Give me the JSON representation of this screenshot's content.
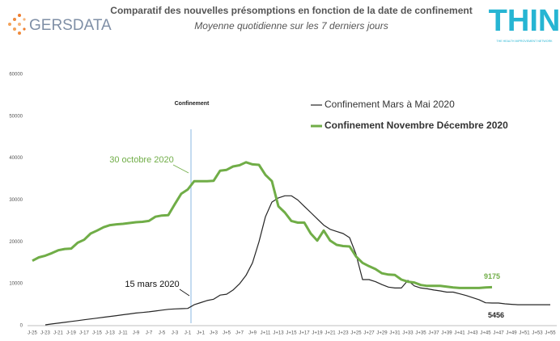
{
  "chart_data": {
    "type": "line",
    "title": "Comparatif des nouvelles présomptions en fonction de la date de confinement",
    "subtitle": "Moyenne quotidienne sur les 7 derniers jours",
    "logos": {
      "left": "GERSDATA",
      "right": "THIN",
      "right_tagline": "THE HEALTH IMPROVEMENT NETWORK"
    },
    "annotations": [
      "Confinement",
      "30 octobre 2020",
      "15 mars 2020"
    ],
    "categories": [
      "J-25",
      null,
      "J-23",
      null,
      "J-21",
      null,
      "J-19",
      null,
      "J-17",
      null,
      "J-15",
      null,
      "J-13",
      null,
      "J-11",
      null,
      "J-9",
      null,
      "J-7",
      null,
      "J-5",
      null,
      "J-3",
      null,
      "J-1",
      null,
      "J+1",
      null,
      "J+3",
      null,
      "J+5",
      null,
      "J+7",
      null,
      "J+9",
      null,
      "J+11",
      null,
      "J+13",
      null,
      "J+15",
      null,
      "J+17",
      null,
      "J+19",
      null,
      "J+21",
      null,
      "J+23",
      null,
      "J+25",
      null,
      "J+27",
      null,
      "J+29",
      null,
      "J+31",
      null,
      "J+33",
      null,
      "J+35",
      null,
      "J+37",
      null,
      "J+39",
      null,
      "J+41",
      null,
      "J+43",
      null,
      "J+45",
      null,
      "J+47",
      null,
      "J+49",
      null,
      "J+51",
      null,
      "J+53",
      null,
      "J+55"
    ],
    "series": [
      {
        "name": "Confinement Mars à Mai 2020",
        "color": "#262626",
        "values": [
          null,
          null,
          200,
          400,
          600,
          800,
          1000,
          1200,
          1400,
          1600,
          1800,
          2000,
          2200,
          2400,
          2600,
          2800,
          3000,
          3150,
          3300,
          3500,
          3700,
          3900,
          4000,
          4050,
          4100,
          5000,
          5500,
          6000,
          6300,
          7300,
          7500,
          8500,
          10000,
          12000,
          15000,
          20000,
          26000,
          29500,
          30500,
          31000,
          31000,
          30000,
          28500,
          27000,
          25500,
          24000,
          23000,
          22500,
          22000,
          21000,
          17000,
          11000,
          11000,
          10500,
          9800,
          9200,
          9000,
          9000,
          10800,
          9500,
          9000,
          8800,
          8500,
          8300,
          8000,
          8000,
          7600,
          7200,
          6700,
          6200,
          5456,
          5400,
          5400,
          5200,
          5100,
          5000,
          5000,
          5000,
          5000,
          5000,
          5000
        ]
      },
      {
        "name": "Confinement Novembre Décembre 2020",
        "color": "#70ad47",
        "values": [
          15500,
          16300,
          16700,
          17300,
          18000,
          18300,
          18400,
          19800,
          20500,
          22000,
          22700,
          23500,
          24000,
          24200,
          24300,
          24500,
          24700,
          24800,
          25000,
          26000,
          26300,
          26400,
          29000,
          31500,
          32500,
          34500,
          34500,
          34500,
          34600,
          37000,
          37200,
          38000,
          38300,
          39000,
          38500,
          38400,
          36000,
          34500,
          28500,
          27000,
          25000,
          24600,
          24600,
          22000,
          20300,
          22700,
          20300,
          19300,
          19000,
          18900,
          16500,
          15000,
          14200,
          13500,
          12500,
          12200,
          12100,
          11000,
          10500,
          10300,
          9700,
          9500,
          9500,
          9500,
          9300,
          9100,
          9000,
          9000,
          9000,
          9000,
          9100,
          9175,
          null,
          null,
          null,
          null,
          null,
          null,
          null,
          null,
          null
        ]
      }
    ],
    "ylim": [
      0,
      60000
    ],
    "yticks": [
      0,
      10000,
      20000,
      30000,
      40000,
      50000,
      60000
    ],
    "grid": false
  }
}
